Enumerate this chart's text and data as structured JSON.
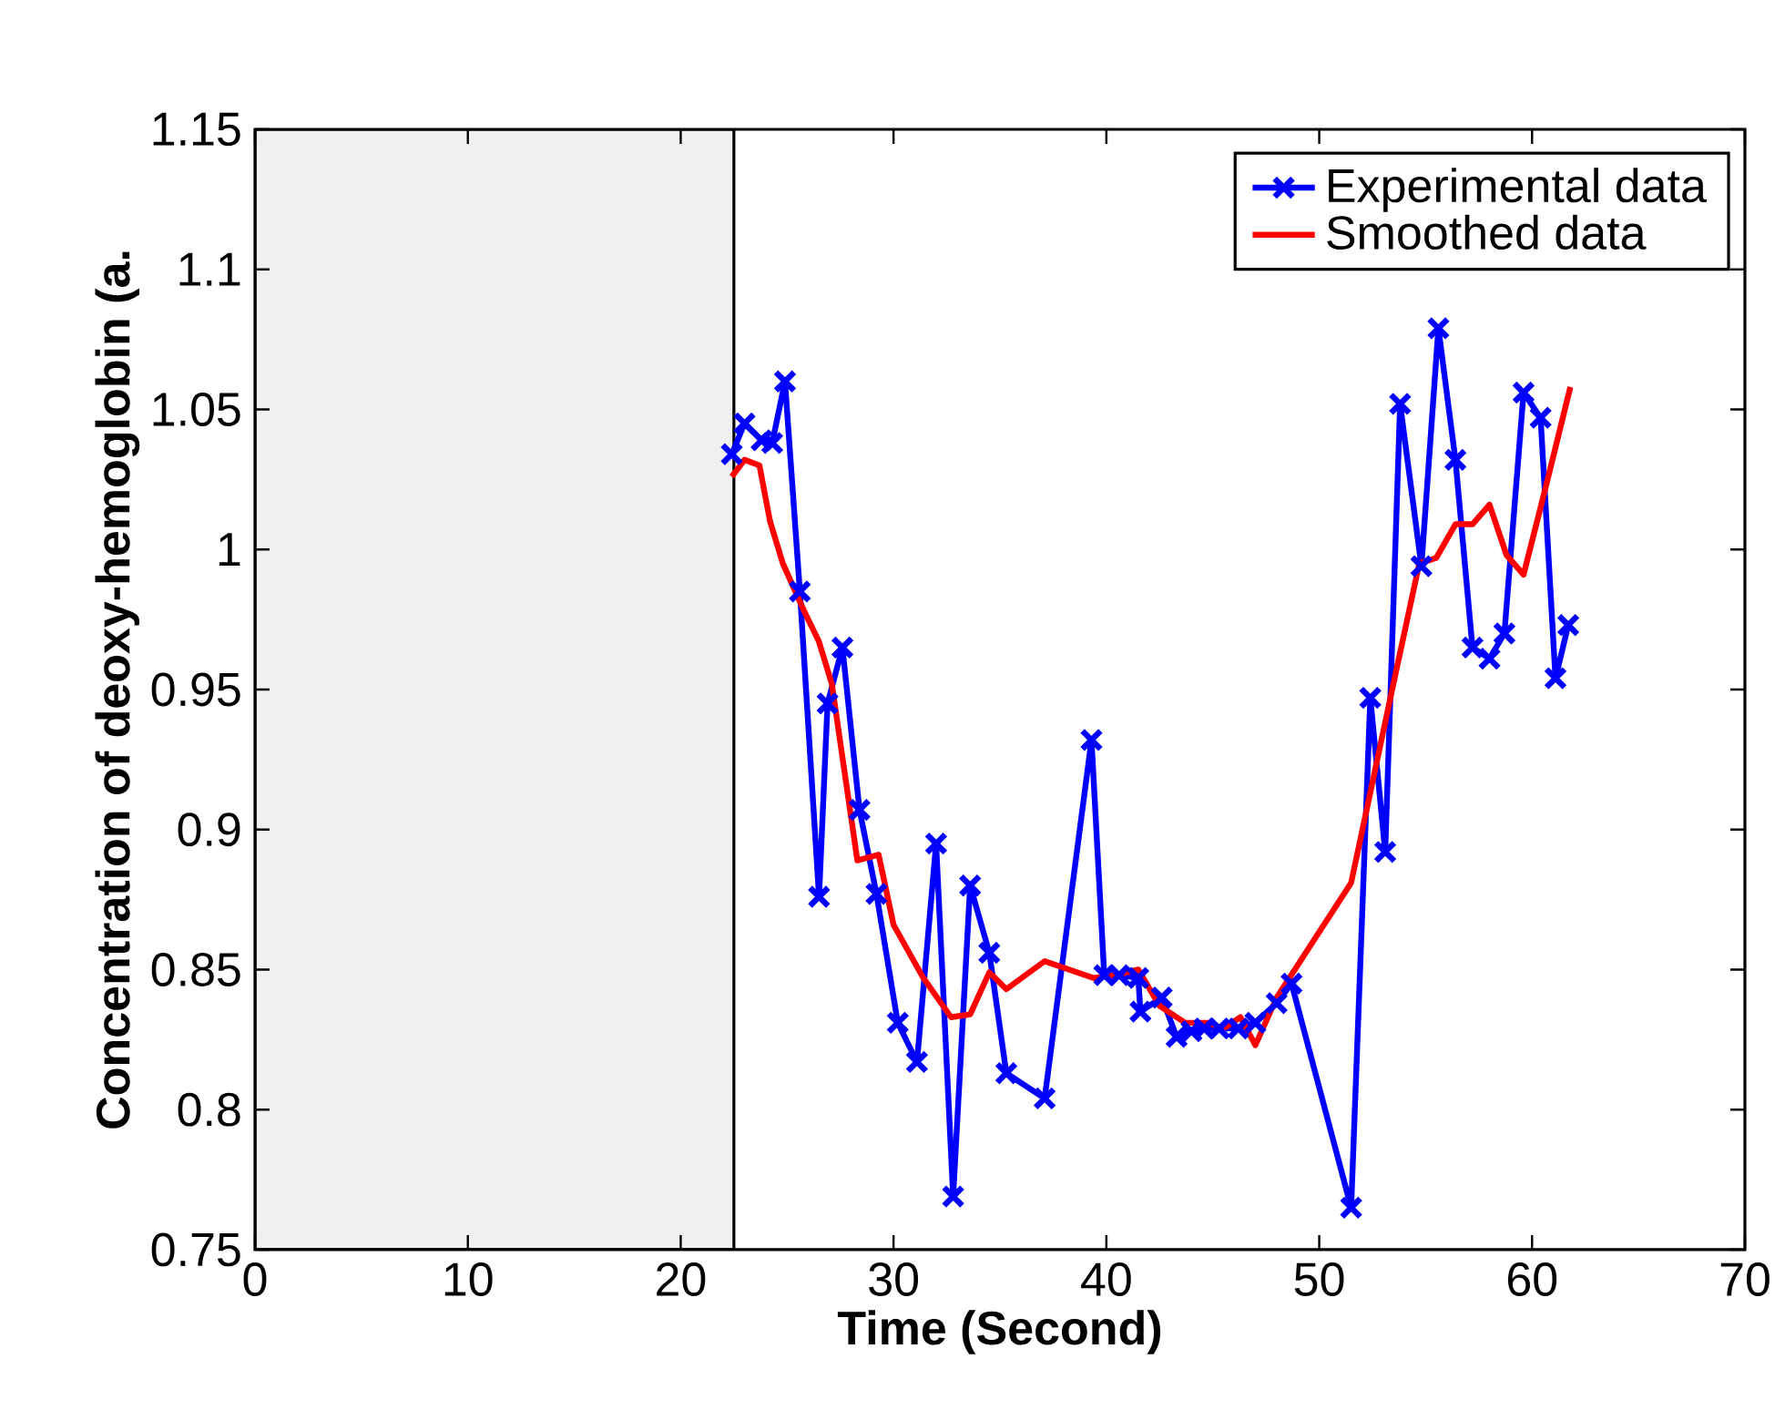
{
  "chart_data": {
    "type": "line",
    "xlabel": "Time (Second)",
    "ylabel": "Concentration of deoxy-hemoglobin (a.",
    "xlim": [
      0,
      70
    ],
    "ylim": [
      0.75,
      1.15
    ],
    "xticks": [
      0,
      10,
      20,
      30,
      40,
      50,
      60,
      70
    ],
    "yticks": [
      0.75,
      0.8,
      0.85,
      0.9,
      0.95,
      1,
      1.05,
      1.1,
      1.15
    ],
    "grid": false,
    "legend": "top right",
    "bands": [
      {
        "axis": "x",
        "from": 0,
        "to": 22.5,
        "color": "#f0f0f0"
      }
    ],
    "series": [
      {
        "name": "Experimental data",
        "color": "#0000ff",
        "marker": "cross",
        "x": [
          22.4,
          23.0,
          23.8,
          24.3,
          24.9,
          25.6,
          26.5,
          26.9,
          27.6,
          28.4,
          29.2,
          30.2,
          31.1,
          32.0,
          32.8,
          33.6,
          34.5,
          35.3,
          37.1,
          39.3,
          39.9,
          40.6,
          41.5,
          41.6,
          42.6,
          43.3,
          44.0,
          44.6,
          45.3,
          46.2,
          47.0,
          48.0,
          48.7,
          51.5,
          52.4,
          53.1,
          53.8,
          54.8,
          55.6,
          56.4,
          57.2,
          58.0,
          58.7,
          59.6,
          60.4,
          61.1,
          61.7
        ],
        "values": [
          1.034,
          1.045,
          1.039,
          1.038,
          1.06,
          0.985,
          0.876,
          0.945,
          0.965,
          0.907,
          0.877,
          0.831,
          0.817,
          0.895,
          0.769,
          0.88,
          0.856,
          0.813,
          0.804,
          0.932,
          0.848,
          0.848,
          0.847,
          0.835,
          0.84,
          0.826,
          0.828,
          0.829,
          0.829,
          0.829,
          0.831,
          0.838,
          0.845,
          0.765,
          0.947,
          0.892,
          1.052,
          0.994,
          1.079,
          1.032,
          0.965,
          0.961,
          0.97,
          1.056,
          1.047,
          0.954,
          0.973
        ]
      },
      {
        "name": "Smoothed data",
        "color": "#ff0000",
        "marker": "none",
        "x": [
          22.4,
          23.0,
          23.7,
          24.2,
          24.8,
          25.8,
          26.5,
          27.1,
          28.3,
          29.3,
          30.0,
          31.4,
          32.7,
          33.6,
          34.5,
          35.3,
          37.1,
          39.4,
          40.4,
          41.5,
          42.5,
          43.7,
          44.8,
          45.5,
          46.3,
          47.0,
          48.0,
          51.5,
          53.4,
          54.7,
          55.5,
          56.4,
          57.2,
          58.0,
          58.8,
          59.6,
          60.6,
          61.8
        ],
        "values": [
          1.026,
          1.032,
          1.03,
          1.01,
          0.995,
          0.978,
          0.967,
          0.952,
          0.889,
          0.891,
          0.866,
          0.847,
          0.833,
          0.834,
          0.849,
          0.843,
          0.853,
          0.847,
          0.848,
          0.85,
          0.837,
          0.831,
          0.831,
          0.829,
          0.833,
          0.823,
          0.84,
          0.881,
          0.949,
          0.995,
          0.997,
          1.009,
          1.009,
          1.016,
          0.998,
          0.991,
          1.021,
          1.058
        ]
      }
    ]
  }
}
